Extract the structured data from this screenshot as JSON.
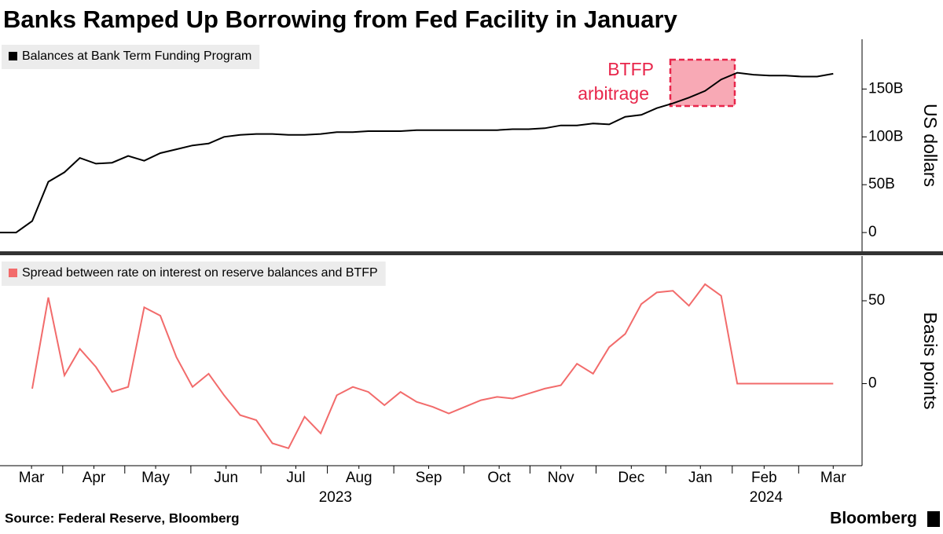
{
  "chart_data": [
    {
      "type": "line",
      "title": "Banks Ramped Up Borrowing from Fed Facility in January",
      "x": [
        0,
        0.24,
        0.48,
        0.72,
        0.96,
        1.19,
        1.43,
        1.67,
        1.91,
        2.15,
        2.39,
        2.63,
        2.87,
        3.11,
        3.34,
        3.58,
        3.82,
        4.06,
        4.3,
        4.54,
        4.78,
        5.02,
        5.26,
        5.49,
        5.73,
        5.97,
        6.21,
        6.45,
        6.69,
        6.93,
        7.17,
        7.41,
        7.64,
        7.88,
        8.12,
        8.36,
        8.6,
        8.84,
        9.08,
        9.32,
        9.56,
        9.79,
        10.03,
        10.27,
        10.51,
        10.75,
        10.99,
        11.23,
        11.47,
        11.71,
        11.95,
        12.18,
        12.42
      ],
      "xlim": [
        0,
        12.85
      ],
      "series": [
        {
          "name": "Balances at Bank Term Funding Program",
          "color": "#000000",
          "values": [
            0,
            0,
            12000000000,
            53000000000,
            63000000000,
            78000000000,
            72000000000,
            73000000000,
            80000000000,
            75000000000,
            83000000000,
            87000000000,
            91000000000,
            93000000000,
            100000000000,
            102000000000,
            103000000000,
            103000000000,
            102000000000,
            102000000000,
            103000000000,
            105000000000,
            105000000000,
            106000000000,
            106000000000,
            106000000000,
            107000000000,
            107000000000,
            107000000000,
            107000000000,
            107000000000,
            107000000000,
            108000000000,
            108000000000,
            109000000000,
            112000000000,
            112000000000,
            114000000000,
            113000000000,
            121000000000,
            123000000000,
            130000000000,
            135000000000,
            141000000000,
            148000000000,
            160000000000,
            167000000000,
            165000000000,
            164000000000,
            164000000000,
            163000000000,
            163000000000,
            166000000000
          ]
        }
      ],
      "ylim": [
        -19600000000,
        202000000000
      ],
      "yticks": [
        0,
        {
          "value": 50000000000,
          "label": "50B"
        },
        {
          "value": 100000000000,
          "label": "100B"
        },
        {
          "value": 150000000000,
          "label": "150B"
        }
      ],
      "ylabel": "US dollars",
      "annotation": [
        "BTFP",
        "arbitrage"
      ]
    },
    {
      "type": "line",
      "x": [
        0,
        0.24,
        0.48,
        0.72,
        0.96,
        1.19,
        1.43,
        1.67,
        1.91,
        2.15,
        2.39,
        2.63,
        2.87,
        3.11,
        3.34,
        3.58,
        3.82,
        4.06,
        4.3,
        4.54,
        4.78,
        5.02,
        5.26,
        5.49,
        5.73,
        5.97,
        6.21,
        6.45,
        6.69,
        6.93,
        7.17,
        7.41,
        7.64,
        7.88,
        8.12,
        8.36,
        8.6,
        8.84,
        9.08,
        9.32,
        9.56,
        9.79,
        10.03,
        10.27,
        10.51,
        10.75,
        10.99,
        11.23,
        11.47,
        11.71,
        11.95,
        12.18,
        12.42
      ],
      "xlim": [
        0,
        12.85
      ],
      "series": [
        {
          "name": "Spread between rate on interest on reserve balances and BTFP",
          "color": "#f26b6b",
          "values": [
            null,
            null,
            -3,
            52,
            5,
            21,
            10,
            -5,
            -2,
            46,
            41,
            16,
            -2,
            6,
            -7,
            -19,
            -22,
            -36,
            -39,
            -20,
            -30,
            -7,
            -2,
            -5,
            -13,
            -5,
            -11,
            -14,
            -18,
            -14,
            -10,
            -8,
            -9,
            -6,
            -3,
            -1,
            12,
            6,
            22,
            30,
            48,
            55,
            56,
            47,
            60,
            53,
            0,
            0,
            0,
            0,
            0,
            0,
            0
          ]
        }
      ],
      "ylim": [
        -49.5,
        77
      ],
      "yticks": [
        0,
        50
      ],
      "ylabel": "Basis points",
      "xticks": [
        {
          "value": 0.47,
          "label": "Mar"
        },
        {
          "value": 1.4,
          "label": "Apr"
        },
        {
          "value": 2.32,
          "label": "May"
        },
        {
          "value": 3.37,
          "label": "Jun"
        },
        {
          "value": 4.41,
          "label": "Jul"
        },
        {
          "value": 5.35,
          "label": "Aug"
        },
        {
          "value": 6.39,
          "label": "Sep"
        },
        {
          "value": 7.44,
          "label": "Oct"
        },
        {
          "value": 8.36,
          "label": "Nov"
        },
        {
          "value": 9.41,
          "label": "Dec"
        },
        {
          "value": 10.44,
          "label": "Jan"
        },
        {
          "value": 11.39,
          "label": "Feb"
        },
        {
          "value": 12.42,
          "label": "Mar"
        }
      ],
      "x_year_labels": [
        {
          "value": 5.0,
          "label": "2023"
        },
        {
          "value": 11.42,
          "label": "2024"
        }
      ]
    }
  ],
  "footer": {
    "source": "Source: Federal Reserve, Bloomberg",
    "brand": "Bloomberg"
  }
}
